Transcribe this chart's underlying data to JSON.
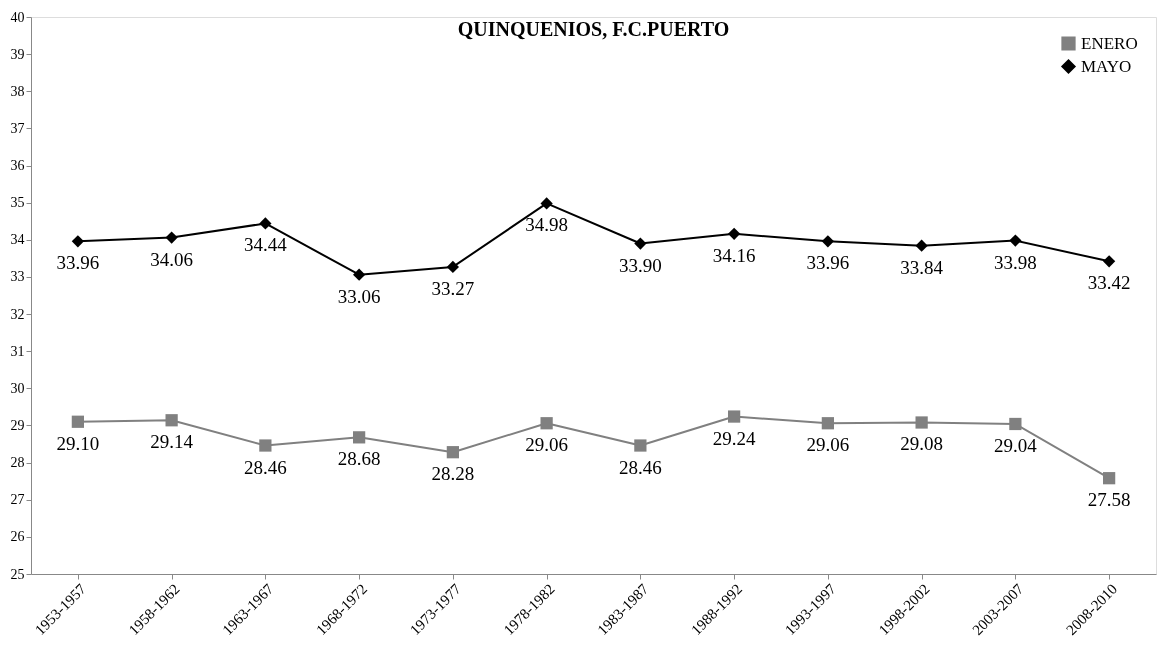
{
  "chart_data": {
    "type": "line",
    "title": "QUINQUENIOS, F.C.PUERTO",
    "categories": [
      "1953-1957",
      "1958-1962",
      "1963-1967",
      "1968-1972",
      "1973-1977",
      "1978-1982",
      "1983-1987",
      "1988-1992",
      "1993-1997",
      "1998-2002",
      "2003-2007",
      "2008-2010"
    ],
    "series": [
      {
        "name": "ENERO",
        "color": "#808080",
        "marker": "square",
        "values": [
          29.1,
          29.14,
          28.46,
          28.68,
          28.28,
          29.06,
          28.46,
          29.24,
          29.06,
          29.08,
          29.04,
          27.58
        ],
        "value_labels": [
          "29.10",
          "29.14",
          "28.46",
          "28.68",
          "28.28",
          "29.06",
          "28.46",
          "29.24",
          "29.06",
          "29.08",
          "29.04",
          "27.58"
        ]
      },
      {
        "name": "MAYO",
        "color": "#000000",
        "marker": "diamond",
        "values": [
          33.96,
          34.06,
          34.44,
          33.06,
          33.27,
          34.98,
          33.9,
          34.16,
          33.96,
          33.84,
          33.98,
          33.42
        ],
        "value_labels": [
          "33.96",
          "34.06",
          "34.44",
          "33.06",
          "33.27",
          "34.98",
          "33.90",
          "34.16",
          "33.96",
          "33.84",
          "33.98",
          "33.42"
        ]
      }
    ],
    "ylim": [
      25,
      40
    ],
    "yticks": [
      25,
      26,
      27,
      28,
      29,
      30,
      31,
      32,
      33,
      34,
      35,
      36,
      37,
      38,
      39,
      40
    ],
    "grid": false,
    "legend": "top right",
    "line_style": "solid"
  }
}
